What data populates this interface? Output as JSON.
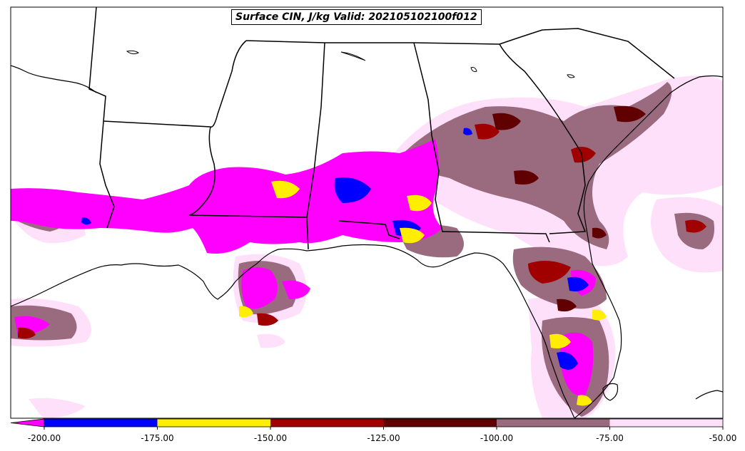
{
  "title": "Surface CIN, J/kg Valid: 2021051021 00f012",
  "title_text": "Surface CIN, J/kg Valid: 202105102100f012",
  "legend": {
    "type": "colorbar",
    "extend": "min",
    "ticks": [
      "-200.00",
      "-175.00",
      "-150.00",
      "-125.00",
      "-100.00",
      "-75.00",
      "-50.00"
    ],
    "levels": [
      -200,
      -175,
      -150,
      -125,
      -100,
      -75,
      -50
    ],
    "colors": [
      "#ff00ff",
      "#0000ff",
      "#ffee00",
      "#a00000",
      "#600000",
      "#9a6a7e",
      "#ffe0fa"
    ],
    "under_color": "#ff00ff"
  },
  "map": {
    "region": "Southeastern United States and Gulf of Mexico",
    "features": [
      "state-borders",
      "coastlines",
      "cin-shaded-field"
    ],
    "background": "#ffffff"
  }
}
